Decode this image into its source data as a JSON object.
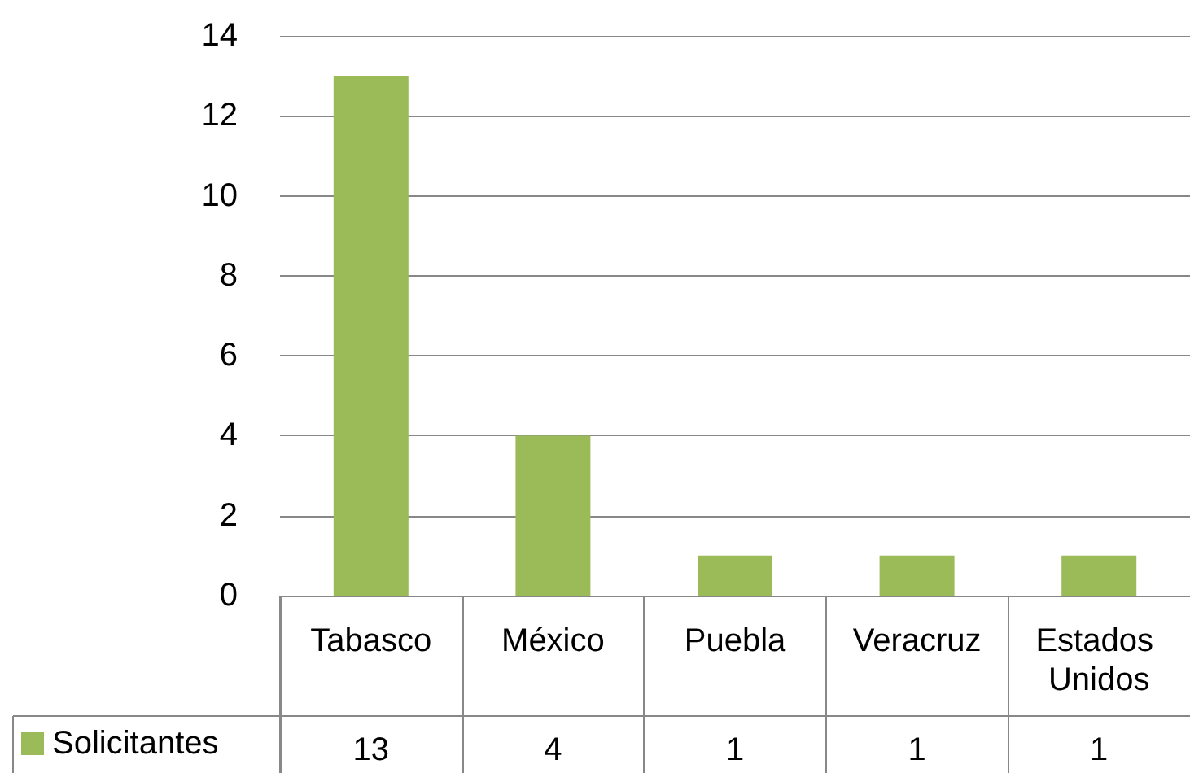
{
  "chart_data": {
    "type": "bar",
    "categories": [
      "Tabasco",
      "México",
      "Puebla",
      "Veracruz",
      "Estados Unidos"
    ],
    "series": [
      {
        "name": "Solicitantes",
        "color": "#9bbb59",
        "values": [
          13,
          4,
          1,
          1,
          1
        ]
      }
    ],
    "ylim": [
      0,
      14
    ],
    "yticks": [
      0,
      2,
      4,
      6,
      8,
      10,
      12,
      14
    ],
    "grid": "y",
    "legend": "bottom left",
    "data_labels": true
  }
}
